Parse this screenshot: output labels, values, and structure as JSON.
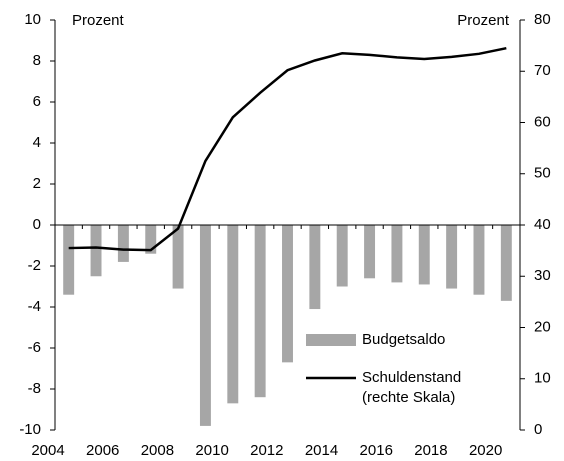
{
  "chart_data": {
    "type": "bar",
    "y_label": "Prozent",
    "y2_label": "Prozent",
    "categories": [
      2004,
      null,
      2006,
      null,
      2008,
      null,
      2010,
      null,
      2012,
      null,
      2014,
      null,
      2016,
      null,
      2018,
      null,
      2020
    ],
    "series": [
      {
        "name": "Budgetsaldo",
        "type": "bar",
        "color": "#a6a6a6",
        "values": [
          -3.4,
          -2.5,
          -1.8,
          -1.4,
          -3.1,
          -9.8,
          -8.7,
          -8.4,
          -6.7,
          -4.1,
          -3.0,
          -2.6,
          -2.8,
          -2.9,
          -3.1,
          -3.4,
          -3.7
        ]
      },
      {
        "name": "Schuldenstand (rechte Skala)",
        "type": "line",
        "color": "#000000",
        "axis": "y2",
        "values": [
          35.5,
          35.6,
          35.2,
          35.1,
          39.3,
          52.5,
          61.0,
          65.8,
          70.2,
          72.1,
          73.5,
          73.2,
          72.7,
          72.4,
          72.8,
          73.4,
          74.5
        ]
      }
    ],
    "ylim": [
      -10,
      10
    ],
    "yticks": [
      -10,
      -8,
      -6,
      -4,
      -2,
      0,
      2,
      4,
      6,
      8,
      10
    ],
    "y2lim": [
      0,
      80
    ],
    "y2ticks": [
      0,
      10,
      20,
      30,
      40,
      50,
      60,
      70,
      80
    ]
  }
}
